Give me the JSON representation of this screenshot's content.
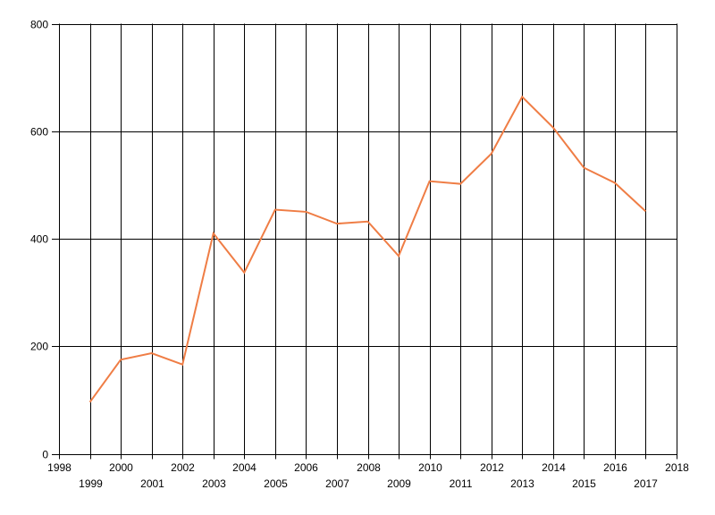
{
  "page": {
    "background": "#ffffff"
  },
  "chart_data": {
    "type": "line",
    "title": "",
    "xlabel": "",
    "ylabel": "",
    "legend": "none",
    "x": [
      1999,
      2000,
      2001,
      2002,
      2003,
      2004,
      2005,
      2006,
      2007,
      2008,
      2009,
      2010,
      2011,
      2012,
      2013,
      2014,
      2015,
      2016,
      2017
    ],
    "values": [
      96,
      175,
      187,
      166,
      410,
      337,
      454,
      450,
      428,
      432,
      368,
      507,
      502,
      558,
      664,
      607,
      532,
      504,
      451
    ],
    "xlim": [
      1998,
      2018
    ],
    "ylim": [
      0,
      800
    ],
    "x_tick_labels": [
      "1998",
      "1999",
      "2000",
      "2001",
      "2002",
      "2003",
      "2004",
      "2005",
      "2006",
      "2007",
      "2008",
      "2009",
      "2010",
      "2011",
      "2012",
      "2013",
      "2014",
      "2015",
      "2016",
      "2017",
      "2018"
    ],
    "y_tick_labels": [
      "0",
      "200",
      "400",
      "600",
      "800"
    ],
    "y_tick_step": 200,
    "x_labels_staggered": true,
    "grid": "full-box",
    "line_color": "#ef7d45",
    "grid_color": "#000000",
    "text_color": "#000000"
  }
}
